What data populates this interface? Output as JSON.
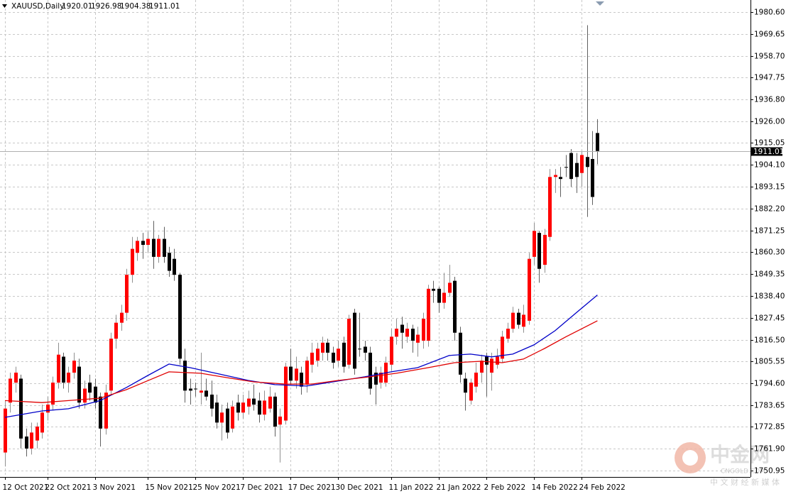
{
  "chart_data": {
    "type": "candlestick",
    "title": "XAUUSD,Daily",
    "categories": [
      "12 Oct 2021",
      null,
      null,
      null,
      null,
      null,
      null,
      null,
      "22 Oct 2021",
      null,
      null,
      null,
      null,
      null,
      null,
      null,
      null,
      "3 Nov 2021",
      null,
      null,
      null,
      null,
      null,
      null,
      null,
      null,
      null,
      "15 Nov 2021",
      null,
      null,
      null,
      null,
      null,
      null,
      null,
      null,
      "25 Nov 2021",
      null,
      null,
      null,
      null,
      null,
      null,
      null,
      null,
      "7 Dec 2021",
      null,
      null,
      null,
      null,
      null,
      null,
      null,
      null,
      "17 Dec 2021",
      null,
      null,
      null,
      null,
      null,
      null,
      null,
      null,
      "30 Dec 2021",
      null,
      null,
      null,
      null,
      null,
      null,
      null,
      null,
      null,
      "11 Jan 2022",
      null,
      null,
      null,
      null,
      null,
      null,
      null,
      null,
      "21 Jan 2022",
      null,
      null,
      null,
      null,
      null,
      null,
      null,
      null,
      "2 Feb 2022",
      null,
      null,
      null,
      null,
      null,
      null,
      null,
      null,
      "14 Feb 2022",
      null,
      null,
      null,
      null,
      null,
      null,
      null,
      null,
      "24 Feb 2022",
      null,
      null,
      null
    ],
    "open": [
      1760,
      1785,
      1795,
      1797,
      1768,
      1762,
      1766,
      1770,
      1780,
      1784,
      1795,
      1808,
      1795,
      1800,
      1803,
      1785,
      1795,
      1793,
      1788,
      1772,
      1791,
      1817,
      1825,
      1830,
      1849,
      1860,
      1866,
      1864,
      1867,
      1858,
      1867,
      1860,
      1857,
      1849,
      1806,
      1792,
      1792,
      1790,
      1791,
      1789,
      1785,
      1775,
      1782,
      1772,
      1785,
      1780,
      1783,
      1787,
      1786,
      1779,
      1782,
      1788,
      1774,
      1776,
      1803,
      1796,
      1800,
      1794,
      1804,
      1806,
      1810,
      1815,
      1810,
      1806,
      1815,
      1804,
      1830,
      1812,
      1813,
      1810,
      1800,
      1795,
      1795,
      1804,
      1818,
      1824,
      1818,
      1822,
      1815,
      1816,
      1816,
      1842,
      1842,
      1835,
      1840,
      1846,
      1820,
      1797,
      1786,
      1793,
      1800,
      1808,
      1800,
      1804,
      1807,
      1817,
      1822,
      1830,
      1823,
      1826,
      1858,
      1870,
      1854,
      1868,
      1898,
      1898,
      1903,
      1910,
      1905,
      1900,
      1908,
      1907,
      1920.01
    ],
    "high": [
      1786,
      1800,
      1803,
      1799,
      1772,
      1775,
      1775,
      1784,
      1788,
      1798,
      1815,
      1810,
      1803,
      1810,
      1807,
      1796,
      1799,
      1797,
      1790,
      1794,
      1820,
      1829,
      1834,
      1852,
      1868,
      1868,
      1870,
      1871,
      1876,
      1869,
      1873,
      1863,
      1862,
      1850,
      1812,
      1797,
      1795,
      1810,
      1797,
      1796,
      1789,
      1784,
      1785,
      1786,
      1789,
      1789,
      1791,
      1794,
      1790,
      1791,
      1793,
      1790,
      1782,
      1805,
      1812,
      1808,
      1803,
      1808,
      1815,
      1815,
      1818,
      1817,
      1813,
      1816,
      1818,
      1829,
      1832,
      1830,
      1816,
      1813,
      1803,
      1803,
      1808,
      1822,
      1827,
      1828,
      1825,
      1824,
      1823,
      1830,
      1844,
      1846,
      1843,
      1850,
      1854,
      1848,
      1823,
      1800,
      1797,
      1805,
      1809,
      1810,
      1810,
      1812,
      1821,
      1825,
      1833,
      1832,
      1834,
      1860,
      1875,
      1871,
      1872,
      1902,
      1902,
      1903,
      1909,
      1912,
      1910,
      1911,
      1974,
      1921,
      1926.98
    ],
    "low": [
      1753,
      1780,
      1790,
      1762,
      1758,
      1759,
      1762,
      1767,
      1776,
      1781,
      1792,
      1792,
      1790,
      1797,
      1782,
      1782,
      1786,
      1782,
      1763,
      1769,
      1789,
      1812,
      1821,
      1826,
      1845,
      1856,
      1857,
      1860,
      1852,
      1855,
      1855,
      1848,
      1846,
      1804,
      1785,
      1784,
      1788,
      1784,
      1786,
      1778,
      1772,
      1766,
      1767,
      1770,
      1776,
      1777,
      1779,
      1781,
      1775,
      1776,
      1780,
      1768,
      1755,
      1774,
      1794,
      1792,
      1789,
      1790,
      1800,
      1803,
      1806,
      1806,
      1802,
      1803,
      1800,
      1802,
      1799,
      1808,
      1806,
      1789,
      1784,
      1792,
      1793,
      1801,
      1814,
      1812,
      1815,
      1810,
      1808,
      1812,
      1813,
      1835,
      1830,
      1832,
      1838,
      1816,
      1795,
      1781,
      1784,
      1790,
      1795,
      1788,
      1791,
      1802,
      1805,
      1815,
      1820,
      1822,
      1820,
      1824,
      1854,
      1845,
      1850,
      1866,
      1890,
      1888,
      1898,
      1893,
      1890,
      1893,
      1878,
      1884,
      1904.38
    ],
    "close": [
      1782,
      1797,
      1800,
      1767,
      1762,
      1770,
      1773,
      1780,
      1784,
      1795,
      1809,
      1795,
      1800,
      1806,
      1785,
      1792,
      1790,
      1785,
      1772,
      1790,
      1817,
      1825,
      1830,
      1849,
      1862,
      1866,
      1864,
      1867,
      1858,
      1867,
      1858,
      1851,
      1849,
      1807,
      1791,
      1791,
      1792,
      1791,
      1788,
      1782,
      1775,
      1780,
      1770,
      1783,
      1780,
      1785,
      1787,
      1784,
      1779,
      1786,
      1788,
      1773,
      1778,
      1803,
      1796,
      1802,
      1793,
      1806,
      1810,
      1812,
      1815,
      1810,
      1805,
      1812,
      1803,
      1827,
      1802,
      1812,
      1810,
      1792,
      1794,
      1800,
      1805,
      1818,
      1822,
      1820,
      1822,
      1816,
      1819,
      1827,
      1842,
      1841,
      1835,
      1840,
      1845,
      1820,
      1799,
      1790,
      1795,
      1800,
      1806,
      1804,
      1807,
      1808,
      1818,
      1822,
      1830,
      1824,
      1829,
      1857,
      1871,
      1852,
      1869,
      1898,
      1899,
      1897,
      1903,
      1897,
      1898,
      1909,
      1903,
      1888,
      1911.01
    ],
    "up_color": "#ff0000",
    "down_color": "#000000",
    "ma_lines": [
      {
        "color": "#0000c8",
        "x": [
          0,
          7,
          12,
          18,
          23,
          27,
          31,
          35,
          41,
          46,
          51,
          57,
          62,
          68,
          73,
          78,
          84,
          88,
          92,
          96,
          100,
          104,
          108,
          112
        ],
        "values": [
          1777.6,
          1780.8,
          1781.9,
          1786,
          1792.6,
          1798.6,
          1804.3,
          1802.5,
          1799,
          1796.1,
          1794,
          1793.3,
          1795.4,
          1797.9,
          1800.4,
          1802.5,
          1808.6,
          1809.3,
          1807.9,
          1809.3,
          1813.9,
          1821,
          1830,
          1838.9
        ]
      },
      {
        "color": "#e00000",
        "x": [
          0,
          7,
          12,
          18,
          23,
          27,
          31,
          37,
          42,
          47,
          53,
          58,
          63,
          69,
          74,
          80,
          85,
          90,
          94,
          98,
          102,
          106,
          112
        ],
        "values": [
          1786,
          1785,
          1786,
          1787.2,
          1791.5,
          1796,
          1800.4,
          1799.7,
          1797.5,
          1795.4,
          1794.3,
          1794.3,
          1796.1,
          1797.9,
          1799.7,
          1802.5,
          1805,
          1805.7,
          1805,
          1806.8,
          1812.1,
          1817.9,
          1826
        ]
      }
    ],
    "ylim": [
      1747.75,
      1986.64
    ],
    "yticks": [
      {
        "value": 1980.6,
        "label": "1980.60"
      },
      1969.65,
      {
        "value": 1958.7,
        "label": "1958.70"
      },
      1947.75,
      {
        "value": 1936.8,
        "label": "1936.80"
      },
      {
        "value": 1926,
        "label": "1926.00"
      },
      1915.05,
      {
        "value": 1904.1,
        "label": "1904.10"
      },
      1893.15,
      {
        "value": 1882.2,
        "label": "1882.20"
      },
      1871.25,
      {
        "value": 1860.3,
        "label": "1860.30"
      },
      1849.35,
      {
        "value": 1838.4,
        "label": "1838.40"
      },
      1827.45,
      {
        "value": 1816.5,
        "label": "1816.50"
      },
      1805.55,
      {
        "value": 1794.6,
        "label": "1794.60"
      },
      1783.65,
      1772.85,
      {
        "value": 1761.9,
        "label": "1761.90"
      },
      1750.95
    ],
    "grid": true
  },
  "watermark": {
    "name": "中金网",
    "site": "CNGOLD.COM",
    "tagline": "中 文 财 经 新 媒 体"
  }
}
